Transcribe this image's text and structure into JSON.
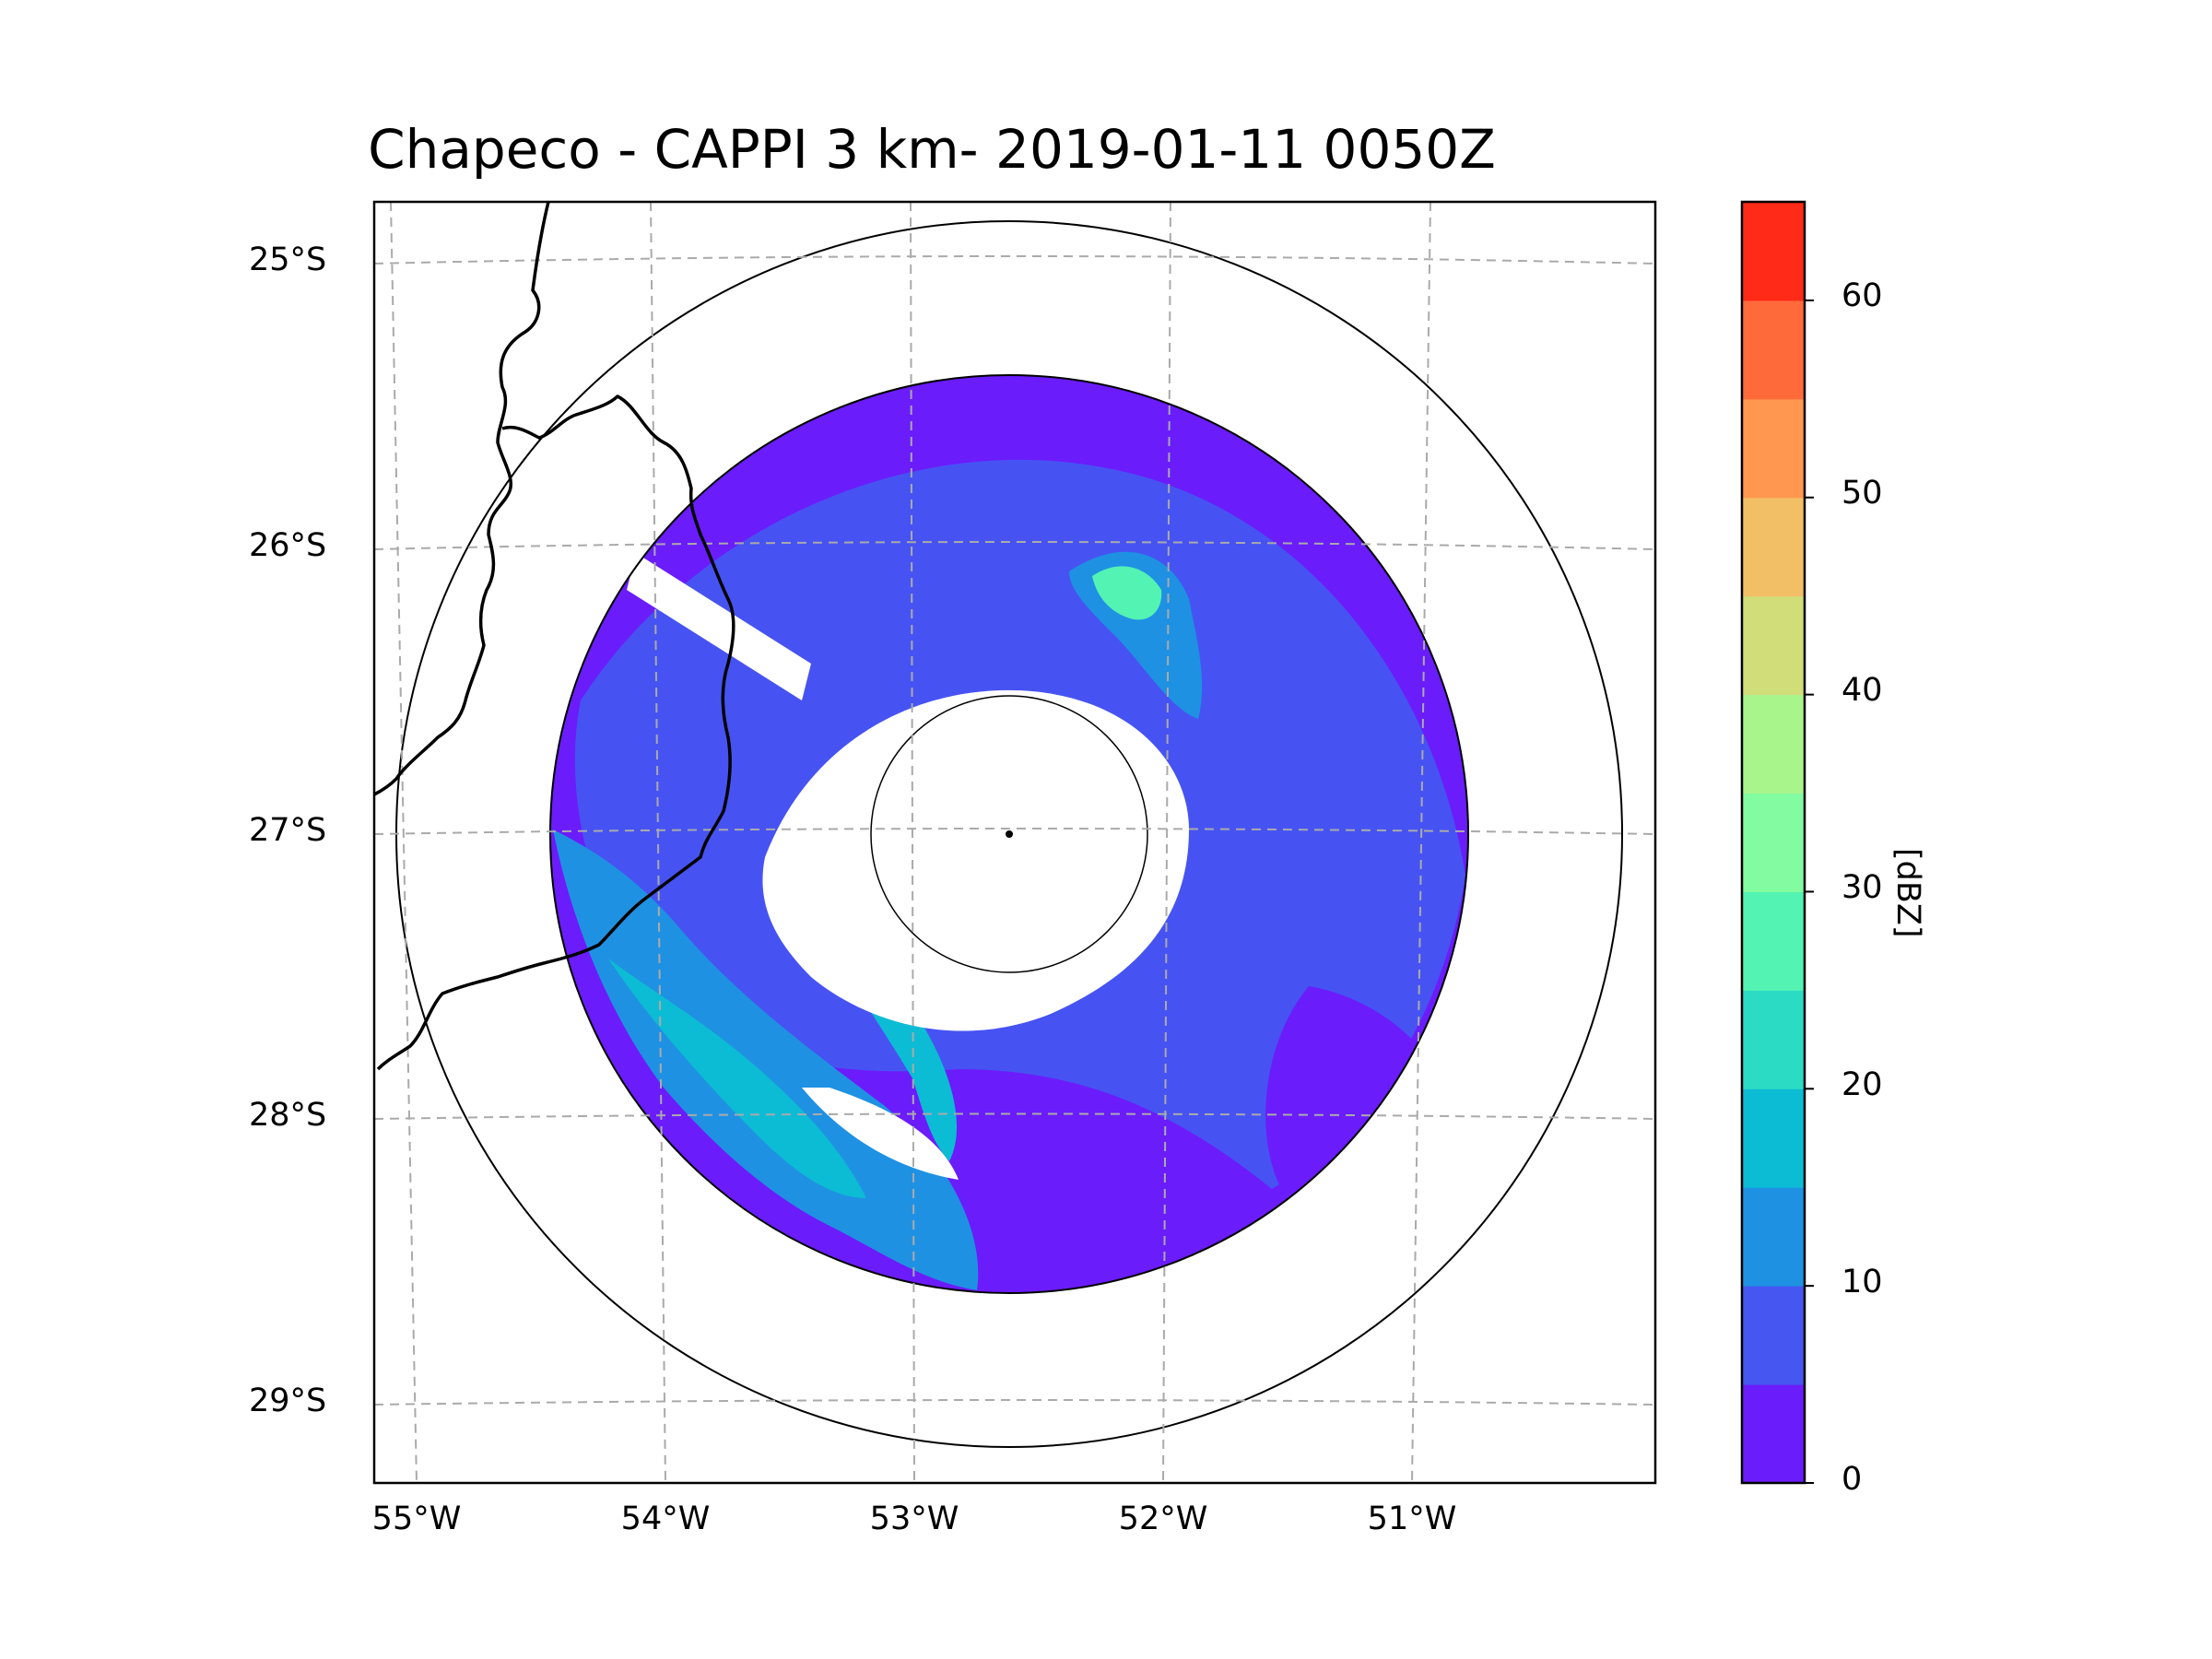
{
  "title": "Chapeco - CAPPI 3 km- 2019-01-11 0050Z",
  "latitude_labels": [
    "25°S",
    "26°S",
    "27°S",
    "28°S",
    "29°S"
  ],
  "longitude_labels": [
    "55°W",
    "54°W",
    "53°W",
    "52°W",
    "51°W"
  ],
  "colorbar": {
    "label": "[dBZ]",
    "tick_labels": [
      "0",
      "10",
      "20",
      "30",
      "40",
      "50",
      "60"
    ],
    "levels": [
      0,
      5,
      10,
      15,
      20,
      25,
      30,
      35,
      40,
      45,
      50,
      55,
      60,
      65
    ],
    "colors": [
      "#6b1cfb",
      "#4556f1",
      "#1f91e3",
      "#0cbcd4",
      "#2cdbc3",
      "#53f3b3",
      "#83fba0",
      "#a8f58c",
      "#d0dd78",
      "#f2bf66",
      "#ff9750",
      "#ff6a3b",
      "#ff2a17"
    ]
  },
  "map": {
    "radar_site": "Chapeco",
    "product": "CAPPI 3 km",
    "center_lon": -52.6,
    "center_lat": -27.0,
    "extent_lon": [
      -55.2,
      -50.1
    ],
    "extent_lat": [
      -29.3,
      -24.8
    ],
    "grid": true,
    "colors": {
      "background": "#6b1cfb",
      "secondary": "#4556f1",
      "strong": "#0cbcd4",
      "peak": "#53f3b3",
      "clutter_free": "#ffffff"
    }
  }
}
